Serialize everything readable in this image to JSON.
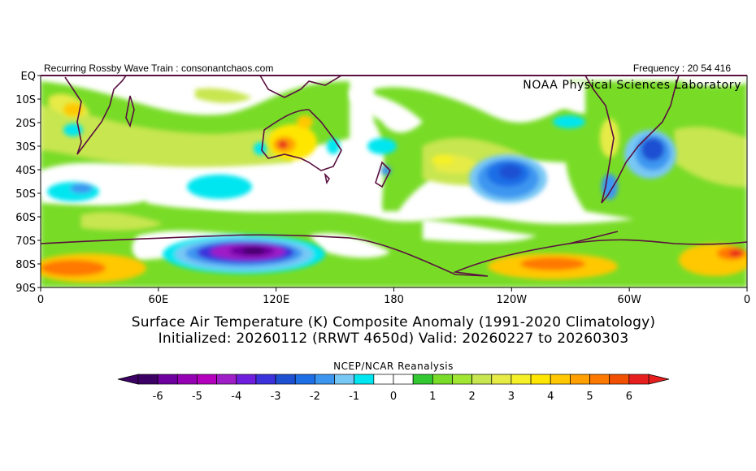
{
  "header": {
    "left_text": "Recurring Rossby Wave Train : consonantchaos.com",
    "right_text": "Frequency : 20 54 416",
    "lab": "NOAA Physical Sciences Laboratory"
  },
  "axes": {
    "lat_labels": [
      "EQ",
      "10S",
      "20S",
      "30S",
      "40S",
      "50S",
      "60S",
      "70S",
      "80S",
      "90S"
    ],
    "lon_labels": [
      "0",
      "60E",
      "120E",
      "180",
      "120W",
      "60W",
      "0"
    ]
  },
  "caption": {
    "line1": "Surface Air Temperature (K) Composite Anomaly (1991-2020 Climatology)",
    "line2": "Initialized: 20260112 (RRWT 4650d) Valid: 20260227 to 20260303",
    "source": "NCEP/NCAR Reanalysis"
  },
  "colorbar": {
    "colors": [
      "#3c0064",
      "#6e00a0",
      "#9600b4",
      "#b400be",
      "#a01ec8",
      "#6e1edc",
      "#3c32dc",
      "#1e50d2",
      "#1e6ee6",
      "#3c96f0",
      "#78c8f5",
      "#00e6f0",
      "#ffffff",
      "#ffffff",
      "#32c832",
      "#78dc28",
      "#a0e632",
      "#c8e650",
      "#e6eb46",
      "#f5f028",
      "#ffe600",
      "#ffc800",
      "#ffa000",
      "#ff7800",
      "#f05000",
      "#e61e1e"
    ],
    "ticks": [
      "-6",
      "-5",
      "-4",
      "-3",
      "-2",
      "-1",
      "0",
      "1",
      "2",
      "3",
      "4",
      "5",
      "6"
    ]
  }
}
